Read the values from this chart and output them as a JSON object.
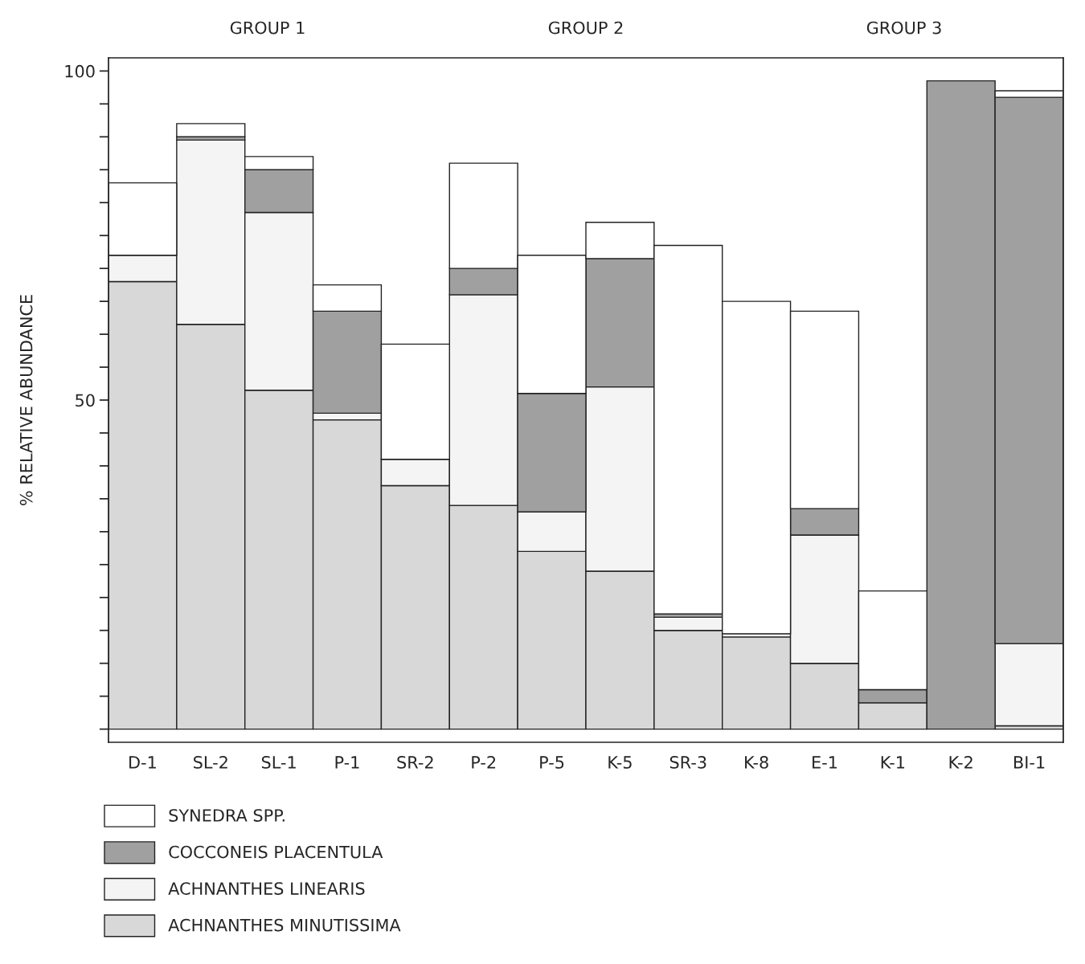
{
  "chart_data": {
    "type": "bar",
    "stacked": true,
    "ylabel": "% RELATIVE ABUNDANCE",
    "categories": [
      "D-1",
      "SL-2",
      "SL-1",
      "P-1",
      "SR-2",
      "P-2",
      "P-5",
      "K-5",
      "SR-3",
      "K-8",
      "E-1",
      "K-1",
      "K-2",
      "BI-1"
    ],
    "series": [
      {
        "name": "ACHNANTHES MINUTISSIMA",
        "color": "#d8d8d8",
        "values": [
          68,
          61.5,
          51.5,
          47,
          37,
          34,
          27,
          24,
          15,
          14,
          10,
          4,
          null,
          0.5
        ]
      },
      {
        "name": "ACHNANTHES LINEARIS",
        "color": "#f4f4f4",
        "values": [
          4,
          28,
          27,
          1,
          4,
          32,
          6,
          28,
          2,
          0.5,
          19.5,
          null,
          null,
          12.5
        ]
      },
      {
        "name": "COCCONEIS PLACENTULA",
        "color": "#a0a0a0",
        "values": [
          null,
          0.5,
          6.5,
          15.5,
          null,
          4,
          18,
          19.5,
          0.5,
          null,
          4,
          2,
          98.5,
          83
        ]
      },
      {
        "name": "SYNEDRA SPP.",
        "color": "#ffffff",
        "values": [
          11,
          2,
          2,
          4,
          17.5,
          16,
          21,
          5.5,
          56,
          50.5,
          30,
          15,
          null,
          1
        ]
      }
    ],
    "ylim": [
      -2,
      102
    ],
    "yticks": [
      {
        "value": 0,
        "label": null
      },
      {
        "value": 5,
        "label": null
      },
      {
        "value": 10,
        "label": null
      },
      {
        "value": 15,
        "label": null
      },
      {
        "value": 20,
        "label": null
      },
      {
        "value": 25,
        "label": null
      },
      {
        "value": 30,
        "label": null
      },
      {
        "value": 35,
        "label": null
      },
      {
        "value": 40,
        "label": null
      },
      {
        "value": 45,
        "label": null
      },
      50,
      {
        "value": 55,
        "label": null
      },
      {
        "value": 60,
        "label": null
      },
      {
        "value": 65,
        "label": null
      },
      {
        "value": 70,
        "label": null
      },
      {
        "value": 75,
        "label": null
      },
      {
        "value": 80,
        "label": null
      },
      {
        "value": 85,
        "label": null
      },
      {
        "value": 90,
        "label": null
      },
      {
        "value": 95,
        "label": null
      },
      100
    ],
    "annotations": [
      "GROUP 1",
      "GROUP 2",
      "GROUP 3"
    ],
    "legend": "bottom left",
    "grid": false
  }
}
